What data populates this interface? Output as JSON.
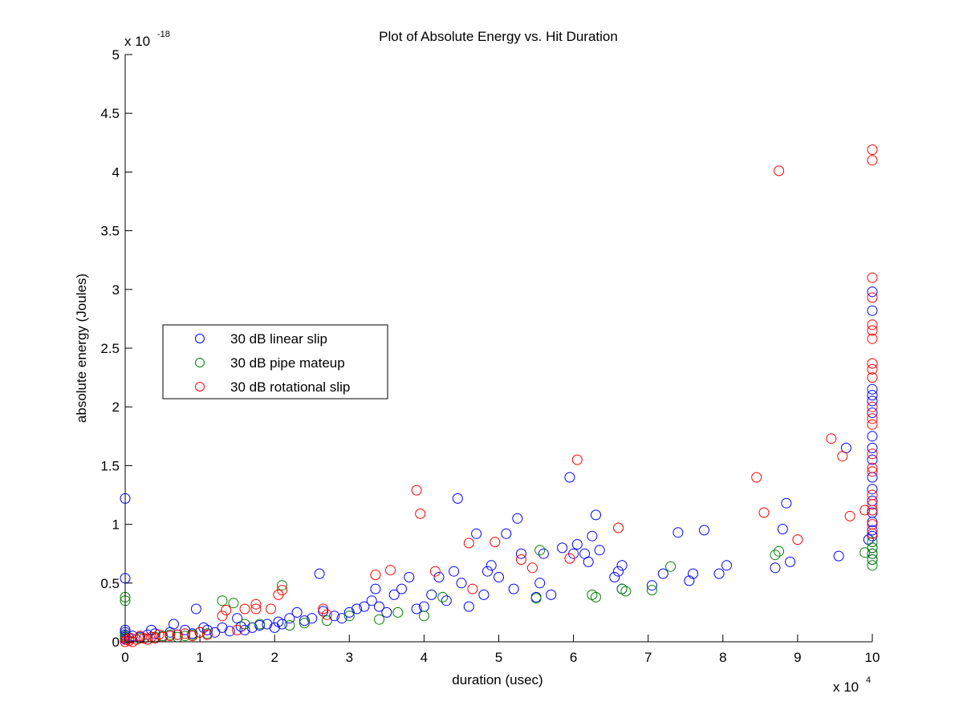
{
  "chart_data": {
    "type": "scatter",
    "title": "Plot of Absolute Energy vs. Hit Duration",
    "xlabel": "duration (usec)",
    "ylabel": "absolute energy (Joules)",
    "x_multiplier_label": {
      "base": "x 10",
      "exp": "4"
    },
    "y_multiplier_label": {
      "base": "x 10",
      "exp": "-18"
    },
    "xlim": [
      0,
      10
    ],
    "ylim": [
      0,
      5
    ],
    "xticks": [
      "0",
      "1",
      "2",
      "3",
      "4",
      "5",
      "6",
      "7",
      "8",
      "9",
      "10"
    ],
    "yticks": [
      "0",
      "0.5",
      "1",
      "1.5",
      "2",
      "2.5",
      "3",
      "3.5",
      "4",
      "4.5",
      "5"
    ],
    "grid": false,
    "legend": {
      "placement": "center-left",
      "entries": [
        "30 dB linear slip",
        "30 dB pipe mateup",
        "30 dB rotational slip"
      ]
    },
    "marker": "open-circle",
    "series": [
      {
        "name": "30 dB linear slip",
        "color": "#0000ff",
        "points": [
          [
            0.0,
            1.22
          ],
          [
            0.0,
            0.54
          ],
          [
            0.0,
            0.1
          ],
          [
            0.0,
            0.08
          ],
          [
            0.0,
            0.06
          ],
          [
            0.0,
            0.04
          ],
          [
            0.0,
            0.02
          ],
          [
            0.05,
            0.03
          ],
          [
            0.1,
            0.05
          ],
          [
            0.2,
            0.04
          ],
          [
            0.3,
            0.06
          ],
          [
            0.35,
            0.1
          ],
          [
            0.4,
            0.07
          ],
          [
            0.5,
            0.05
          ],
          [
            0.6,
            0.08
          ],
          [
            0.65,
            0.15
          ],
          [
            0.7,
            0.06
          ],
          [
            0.8,
            0.1
          ],
          [
            0.9,
            0.07
          ],
          [
            0.95,
            0.28
          ],
          [
            1.0,
            0.08
          ],
          [
            1.05,
            0.12
          ],
          [
            1.1,
            0.1
          ],
          [
            1.2,
            0.08
          ],
          [
            1.3,
            0.12
          ],
          [
            1.4,
            0.09
          ],
          [
            1.5,
            0.2
          ],
          [
            1.55,
            0.13
          ],
          [
            1.6,
            0.1
          ],
          [
            1.7,
            0.12
          ],
          [
            1.8,
            0.14
          ],
          [
            1.9,
            0.15
          ],
          [
            2.0,
            0.12
          ],
          [
            2.05,
            0.17
          ],
          [
            2.1,
            0.15
          ],
          [
            2.2,
            0.2
          ],
          [
            2.3,
            0.25
          ],
          [
            2.4,
            0.18
          ],
          [
            2.5,
            0.2
          ],
          [
            2.6,
            0.58
          ],
          [
            2.65,
            0.26
          ],
          [
            2.8,
            0.22
          ],
          [
            2.9,
            0.2
          ],
          [
            3.0,
            0.25
          ],
          [
            3.1,
            0.28
          ],
          [
            3.2,
            0.3
          ],
          [
            3.3,
            0.35
          ],
          [
            3.35,
            0.45
          ],
          [
            3.4,
            0.3
          ],
          [
            3.5,
            0.25
          ],
          [
            3.6,
            0.4
          ],
          [
            3.7,
            0.45
          ],
          [
            3.8,
            0.55
          ],
          [
            3.9,
            0.28
          ],
          [
            4.0,
            0.3
          ],
          [
            4.1,
            0.4
          ],
          [
            4.2,
            0.55
          ],
          [
            4.3,
            0.35
          ],
          [
            4.4,
            0.6
          ],
          [
            4.45,
            1.22
          ],
          [
            4.5,
            0.5
          ],
          [
            4.6,
            0.3
          ],
          [
            4.7,
            0.92
          ],
          [
            4.8,
            0.4
          ],
          [
            4.85,
            0.6
          ],
          [
            4.9,
            0.65
          ],
          [
            5.0,
            0.55
          ],
          [
            5.1,
            0.92
          ],
          [
            5.2,
            0.45
          ],
          [
            5.25,
            1.05
          ],
          [
            5.3,
            0.75
          ],
          [
            5.5,
            0.38
          ],
          [
            5.55,
            0.5
          ],
          [
            5.6,
            0.75
          ],
          [
            5.7,
            0.4
          ],
          [
            5.85,
            0.8
          ],
          [
            5.95,
            1.4
          ],
          [
            6.0,
            0.75
          ],
          [
            6.05,
            0.83
          ],
          [
            6.15,
            0.75
          ],
          [
            6.2,
            0.68
          ],
          [
            6.25,
            0.9
          ],
          [
            6.3,
            1.08
          ],
          [
            6.35,
            0.78
          ],
          [
            6.55,
            0.55
          ],
          [
            6.6,
            0.6
          ],
          [
            6.65,
            0.65
          ],
          [
            6.65,
            0.45
          ],
          [
            7.05,
            0.48
          ],
          [
            7.2,
            0.58
          ],
          [
            7.4,
            0.93
          ],
          [
            7.55,
            0.52
          ],
          [
            7.6,
            0.58
          ],
          [
            7.75,
            0.95
          ],
          [
            7.95,
            0.58
          ],
          [
            8.05,
            0.65
          ],
          [
            8.7,
            0.63
          ],
          [
            8.8,
            0.96
          ],
          [
            8.85,
            1.18
          ],
          [
            8.9,
            0.68
          ],
          [
            9.55,
            0.73
          ],
          [
            9.65,
            1.65
          ],
          [
            9.95,
            0.87
          ],
          [
            10.0,
            2.98
          ],
          [
            10.0,
            2.82
          ],
          [
            10.0,
            2.15
          ],
          [
            10.0,
            2.1
          ],
          [
            10.0,
            2.05
          ],
          [
            10.0,
            1.95
          ],
          [
            10.0,
            1.75
          ],
          [
            10.0,
            1.65
          ],
          [
            10.0,
            1.55
          ],
          [
            10.0,
            1.4
          ],
          [
            10.0,
            1.3
          ],
          [
            10.0,
            1.2
          ],
          [
            10.0,
            1.1
          ],
          [
            10.0,
            1.02
          ],
          [
            10.0,
            0.95
          ],
          [
            10.0,
            0.9
          ],
          [
            10.0,
            0.8
          ],
          [
            10.0,
            0.75
          ],
          [
            10.0,
            0.7
          ]
        ]
      },
      {
        "name": "30 dB pipe mateup",
        "color": "#008000",
        "points": [
          [
            0.0,
            0.38
          ],
          [
            0.0,
            0.35
          ],
          [
            0.0,
            0.05
          ],
          [
            0.0,
            0.03
          ],
          [
            0.2,
            0.03
          ],
          [
            0.4,
            0.04
          ],
          [
            0.5,
            0.05
          ],
          [
            0.6,
            0.06
          ],
          [
            0.7,
            0.04
          ],
          [
            0.8,
            0.05
          ],
          [
            0.9,
            0.06
          ],
          [
            1.0,
            0.08
          ],
          [
            1.1,
            0.07
          ],
          [
            1.3,
            0.35
          ],
          [
            1.45,
            0.33
          ],
          [
            1.6,
            0.15
          ],
          [
            1.8,
            0.15
          ],
          [
            2.1,
            0.48
          ],
          [
            2.2,
            0.14
          ],
          [
            2.4,
            0.16
          ],
          [
            2.7,
            0.18
          ],
          [
            3.0,
            0.22
          ],
          [
            3.4,
            0.19
          ],
          [
            3.65,
            0.25
          ],
          [
            4.0,
            0.22
          ],
          [
            4.25,
            0.38
          ],
          [
            5.5,
            0.37
          ],
          [
            5.55,
            0.78
          ],
          [
            6.25,
            0.4
          ],
          [
            6.3,
            0.38
          ],
          [
            6.65,
            0.45
          ],
          [
            6.7,
            0.43
          ],
          [
            7.05,
            0.44
          ],
          [
            7.3,
            0.64
          ],
          [
            8.7,
            0.74
          ],
          [
            8.75,
            0.77
          ],
          [
            9.9,
            0.76
          ],
          [
            10.0,
            0.85
          ],
          [
            10.0,
            0.8
          ],
          [
            10.0,
            0.75
          ],
          [
            10.0,
            0.7
          ],
          [
            10.0,
            0.65
          ]
        ]
      },
      {
        "name": "30 dB rotational slip",
        "color": "#ff0000",
        "points": [
          [
            0.0,
            0.0
          ],
          [
            0.02,
            0.02
          ],
          [
            0.05,
            0.01
          ],
          [
            0.08,
            0.03
          ],
          [
            0.1,
            0.0
          ],
          [
            0.15,
            0.02
          ],
          [
            0.2,
            0.05
          ],
          [
            0.25,
            0.03
          ],
          [
            0.3,
            0.02
          ],
          [
            0.35,
            0.04
          ],
          [
            0.4,
            0.03
          ],
          [
            0.45,
            0.06
          ],
          [
            0.5,
            0.04
          ],
          [
            0.6,
            0.05
          ],
          [
            0.7,
            0.06
          ],
          [
            0.8,
            0.07
          ],
          [
            0.9,
            0.05
          ],
          [
            1.0,
            0.08
          ],
          [
            1.1,
            0.06
          ],
          [
            1.3,
            0.22
          ],
          [
            1.35,
            0.27
          ],
          [
            1.5,
            0.1
          ],
          [
            1.6,
            0.28
          ],
          [
            1.75,
            0.32
          ],
          [
            1.75,
            0.28
          ],
          [
            1.95,
            0.28
          ],
          [
            2.05,
            0.4
          ],
          [
            2.1,
            0.44
          ],
          [
            2.65,
            0.28
          ],
          [
            2.7,
            0.23
          ],
          [
            3.35,
            0.57
          ],
          [
            3.55,
            0.61
          ],
          [
            3.9,
            1.29
          ],
          [
            3.95,
            1.09
          ],
          [
            4.15,
            0.6
          ],
          [
            4.6,
            0.84
          ],
          [
            4.65,
            0.45
          ],
          [
            4.95,
            0.85
          ],
          [
            5.3,
            0.7
          ],
          [
            5.45,
            0.63
          ],
          [
            5.95,
            0.71
          ],
          [
            6.05,
            1.55
          ],
          [
            6.6,
            0.97
          ],
          [
            8.45,
            1.4
          ],
          [
            8.55,
            1.1
          ],
          [
            9.0,
            0.87
          ],
          [
            9.45,
            1.73
          ],
          [
            9.6,
            1.58
          ],
          [
            9.7,
            1.07
          ],
          [
            9.9,
            1.12
          ],
          [
            8.75,
            4.01
          ],
          [
            10.0,
            4.19
          ],
          [
            10.0,
            4.1
          ],
          [
            10.0,
            3.1
          ],
          [
            10.0,
            2.93
          ],
          [
            10.0,
            2.7
          ],
          [
            10.0,
            2.65
          ],
          [
            10.0,
            2.58
          ],
          [
            10.0,
            2.37
          ],
          [
            10.0,
            2.32
          ],
          [
            10.0,
            2.25
          ],
          [
            10.0,
            2.0
          ],
          [
            10.0,
            1.9
          ],
          [
            10.0,
            1.85
          ],
          [
            10.0,
            1.6
          ],
          [
            10.0,
            1.48
          ],
          [
            10.0,
            1.45
          ],
          [
            10.0,
            1.25
          ],
          [
            10.0,
            1.17
          ],
          [
            10.0,
            1.12
          ],
          [
            10.0,
            1.0
          ],
          [
            10.0,
            0.92
          ]
        ]
      }
    ]
  }
}
